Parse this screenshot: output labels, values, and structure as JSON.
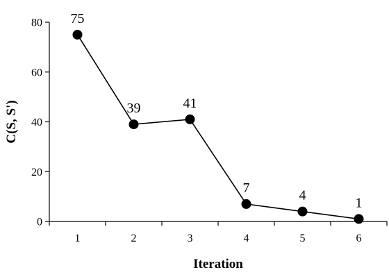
{
  "chart_data": {
    "type": "line",
    "title": "",
    "xlabel": "Iteration",
    "ylabel": "C(S, S')",
    "x": [
      1,
      2,
      3,
      4,
      5,
      6
    ],
    "x_tick_labels": [
      "1",
      "2",
      "3",
      "4",
      "5",
      "6"
    ],
    "y_ticks": [
      0,
      20,
      40,
      60,
      80
    ],
    "y_tick_labels": [
      "0",
      "20",
      "40",
      "60",
      "80"
    ],
    "ylim": [
      0,
      80
    ],
    "grid": false,
    "legend": "none",
    "series": [
      {
        "values": [
          75,
          39,
          41,
          7,
          4,
          1
        ],
        "data_labels": [
          "75",
          "39",
          "41",
          "7",
          "4",
          "1"
        ],
        "color": "#000000",
        "marker": "filled-circle"
      }
    ]
  }
}
